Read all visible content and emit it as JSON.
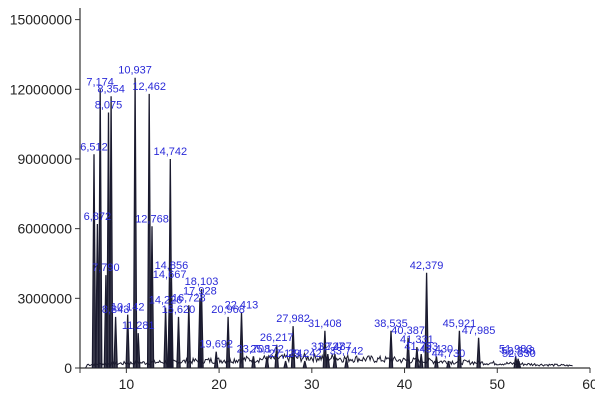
{
  "chart_data": {
    "type": "line",
    "title": "",
    "xlabel": "",
    "ylabel": "",
    "xlim": [
      5,
      60
    ],
    "ylim": [
      0,
      15500000
    ],
    "x_ticks": [
      10,
      20,
      30,
      40,
      50,
      60
    ],
    "y_ticks": [
      0,
      3000000,
      6000000,
      9000000,
      12000000,
      15000000
    ],
    "y_tick_labels": [
      "0",
      "3000000",
      "6000000",
      "9000000",
      "12000000",
      "15000000"
    ],
    "grid": false,
    "legend": "none",
    "line_color": "#1a1a2e",
    "label_color": "#2a2ad8",
    "peaks": [
      {
        "label": "6,512",
        "x": 6.512,
        "y": 9200000
      },
      {
        "label": "6,872",
        "x": 6.872,
        "y": 6200000
      },
      {
        "label": "7,174",
        "x": 7.174,
        "y": 12000000
      },
      {
        "label": "7,790",
        "x": 7.79,
        "y": 4000000
      },
      {
        "label": "8,075",
        "x": 8.075,
        "y": 11000000
      },
      {
        "label": "8,354",
        "x": 8.354,
        "y": 11700000
      },
      {
        "label": "8,843",
        "x": 8.843,
        "y": 2200000
      },
      {
        "label": "10,142",
        "x": 10.142,
        "y": 2300000
      },
      {
        "label": "10,937",
        "x": 10.937,
        "y": 12500000
      },
      {
        "label": "11,281",
        "x": 11.281,
        "y": 1500000
      },
      {
        "label": "12,462",
        "x": 12.462,
        "y": 11800000
      },
      {
        "label": "12,768",
        "x": 12.768,
        "y": 6100000
      },
      {
        "label": "14,226",
        "x": 14.226,
        "y": 2600000
      },
      {
        "label": "14,667",
        "x": 14.667,
        "y": 3700000
      },
      {
        "label": "14,742",
        "x": 14.742,
        "y": 9000000
      },
      {
        "label": "14,856",
        "x": 14.856,
        "y": 4100000
      },
      {
        "label": "15,620",
        "x": 15.62,
        "y": 2200000
      },
      {
        "label": "16,728",
        "x": 16.728,
        "y": 2700000
      },
      {
        "label": "17,928",
        "x": 17.928,
        "y": 3000000
      },
      {
        "label": "18,103",
        "x": 18.103,
        "y": 3400000
      },
      {
        "label": "19,692",
        "x": 19.692,
        "y": 700000
      },
      {
        "label": "20,968",
        "x": 20.968,
        "y": 2200000
      },
      {
        "label": "22,413",
        "x": 22.413,
        "y": 2400000
      },
      {
        "label": "23,708",
        "x": 23.708,
        "y": 500000
      },
      {
        "label": "25,172",
        "x": 25.172,
        "y": 500000
      },
      {
        "label": "26,217",
        "x": 26.217,
        "y": 1000000
      },
      {
        "label": "27,174",
        "x": 27.174,
        "y": 300000
      },
      {
        "label": "27,982",
        "x": 27.982,
        "y": 1800000
      },
      {
        "label": "29,242",
        "x": 29.242,
        "y": 300000
      },
      {
        "label": "31,408",
        "x": 31.408,
        "y": 1600000
      },
      {
        "label": "31,727",
        "x": 31.727,
        "y": 600000
      },
      {
        "label": "32,487",
        "x": 32.487,
        "y": 600000
      },
      {
        "label": "33,742",
        "x": 33.742,
        "y": 400000
      },
      {
        "label": "38,535",
        "x": 38.535,
        "y": 1600000
      },
      {
        "label": "40,387",
        "x": 40.387,
        "y": 1300000
      },
      {
        "label": "41,331",
        "x": 41.331,
        "y": 900000
      },
      {
        "label": "41,793",
        "x": 41.793,
        "y": 600000
      },
      {
        "label": "42,379",
        "x": 42.379,
        "y": 4100000
      },
      {
        "label": "43,430",
        "x": 43.43,
        "y": 500000
      },
      {
        "label": "44,730",
        "x": 44.73,
        "y": 300000
      },
      {
        "label": "45,921",
        "x": 45.921,
        "y": 1600000
      },
      {
        "label": "47,985",
        "x": 47.985,
        "y": 1300000
      },
      {
        "label": "51,983",
        "x": 51.983,
        "y": 500000
      },
      {
        "label": "52,248",
        "x": 52.248,
        "y": 400000
      },
      {
        "label": "52,330",
        "x": 52.33,
        "y": 300000
      }
    ]
  }
}
